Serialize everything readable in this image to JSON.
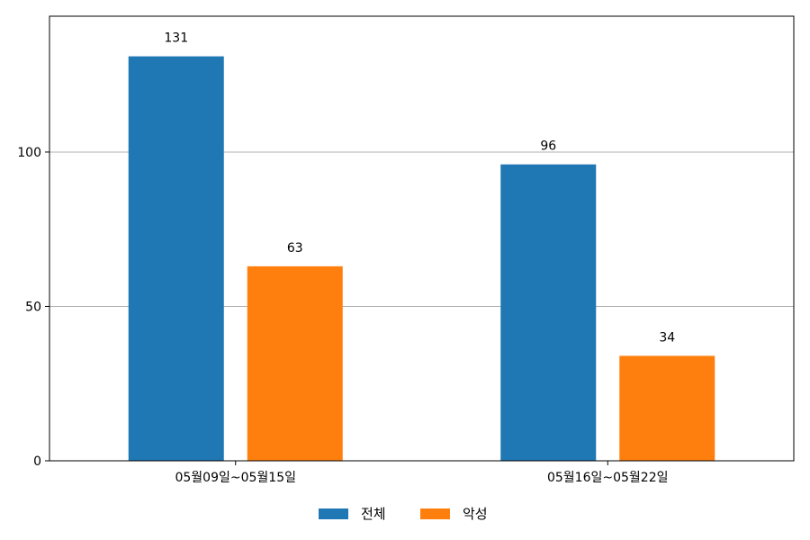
{
  "chart_data": {
    "type": "bar",
    "categories": [
      "05월09일~05월15일",
      "05월16일~05월22일"
    ],
    "series": [
      {
        "name": "전체",
        "values": [
          131,
          96
        ],
        "color": "#1f77b4"
      },
      {
        "name": "악성",
        "values": [
          63,
          34
        ],
        "color": "#ff7f0e"
      }
    ],
    "yticks": [
      0,
      50,
      100
    ],
    "ylim": [
      0,
      144
    ],
    "grid": "y",
    "legend_position": "bottom-center",
    "show_data_labels": true
  }
}
